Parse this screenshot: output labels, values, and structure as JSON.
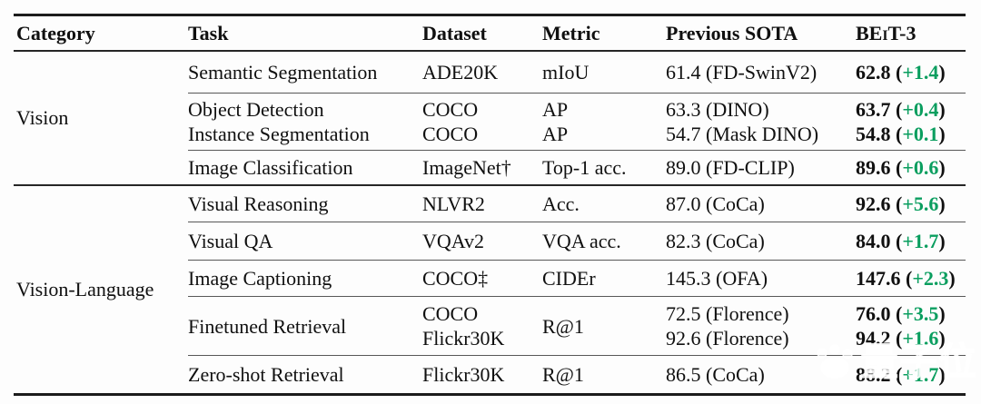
{
  "accent": {
    "green": "#0a9e5f",
    "rule_dark": "#1c1c1c",
    "rule_mid": "#262626",
    "rule_light": "#585858"
  },
  "header": {
    "columns": [
      "Category",
      "Task",
      "Dataset",
      "Metric",
      "Previous SOTA"
    ],
    "beit3": {
      "pre": "BE",
      "small": "I",
      "post": "T-3"
    }
  },
  "table": {
    "sections": [
      {
        "category": "Vision",
        "rows": [
          {
            "task": [
              "Semantic Segmentation"
            ],
            "dataset": [
              "ADE20K"
            ],
            "metric": [
              "mIoU"
            ],
            "previous_sota": [
              "61.4 (FD-SwinV2)"
            ],
            "beit3": [
              {
                "value": "62.8",
                "delta": "+1.4"
              }
            ]
          },
          {
            "task": [
              "Object Detection",
              "Instance Segmentation"
            ],
            "dataset": [
              "COCO",
              "COCO"
            ],
            "metric": [
              "AP",
              "AP"
            ],
            "previous_sota": [
              "63.3 (DINO)",
              "54.7 (Mask DINO)"
            ],
            "beit3": [
              {
                "value": "63.7",
                "delta": "+0.4"
              },
              {
                "value": "54.8",
                "delta": "+0.1"
              }
            ]
          },
          {
            "task": [
              "Image Classification"
            ],
            "dataset": [
              "ImageNet†"
            ],
            "metric": [
              "Top-1 acc."
            ],
            "previous_sota": [
              "89.0 (FD-CLIP)"
            ],
            "beit3": [
              {
                "value": "89.6",
                "delta": "+0.6"
              }
            ]
          }
        ]
      },
      {
        "category": "Vision-Language",
        "rows": [
          {
            "task": [
              "Visual Reasoning"
            ],
            "dataset": [
              "NLVR2"
            ],
            "metric": [
              "Acc."
            ],
            "previous_sota": [
              "87.0 (CoCa)"
            ],
            "beit3": [
              {
                "value": "92.6",
                "delta": "+5.6"
              }
            ]
          },
          {
            "task": [
              "Visual QA"
            ],
            "dataset": [
              "VQAv2"
            ],
            "metric": [
              "VQA acc."
            ],
            "previous_sota": [
              "82.3 (CoCa)"
            ],
            "beit3": [
              {
                "value": "84.0",
                "delta": "+1.7"
              }
            ]
          },
          {
            "task": [
              "Image Captioning"
            ],
            "dataset": [
              "COCO‡"
            ],
            "metric": [
              "CIDEr"
            ],
            "previous_sota": [
              "145.3 (OFA)"
            ],
            "beit3": [
              {
                "value": "147.6",
                "delta": "+2.3"
              }
            ]
          },
          {
            "task": [
              "Finetuned Retrieval"
            ],
            "dataset": [
              "COCO",
              "Flickr30K"
            ],
            "metric": [
              "R@1"
            ],
            "previous_sota": [
              "72.5 (Florence)",
              "92.6 (Florence)"
            ],
            "beit3": [
              {
                "value": "76.0",
                "delta": "+3.5"
              },
              {
                "value": "94.2",
                "delta": "+1.6"
              }
            ]
          },
          {
            "task": [
              "Zero-shot Retrieval"
            ],
            "dataset": [
              "Flickr30K"
            ],
            "metric": [
              "R@1"
            ],
            "previous_sota": [
              "86.5 (CoCa)"
            ],
            "beit3": [
              {
                "value": "88.2",
                "delta": "+1.7"
              }
            ]
          }
        ]
      }
    ]
  },
  "chart_data": {
    "type": "table",
    "columns": [
      "Category",
      "Task",
      "Dataset",
      "Metric",
      "Previous SOTA",
      "BEiT-3"
    ],
    "rows": [
      [
        "Vision",
        "Semantic Segmentation",
        "ADE20K",
        "mIoU",
        "61.4 (FD-SwinV2)",
        "62.8 (+1.4)"
      ],
      [
        "Vision",
        "Object Detection",
        "COCO",
        "AP",
        "63.3 (DINO)",
        "63.7 (+0.4)"
      ],
      [
        "Vision",
        "Instance Segmentation",
        "COCO",
        "AP",
        "54.7 (Mask DINO)",
        "54.8 (+0.1)"
      ],
      [
        "Vision",
        "Image Classification",
        "ImageNet†",
        "Top-1 acc.",
        "89.0 (FD-CLIP)",
        "89.6 (+0.6)"
      ],
      [
        "Vision-Language",
        "Visual Reasoning",
        "NLVR2",
        "Acc.",
        "87.0 (CoCa)",
        "92.6 (+5.6)"
      ],
      [
        "Vision-Language",
        "Visual QA",
        "VQAv2",
        "VQA acc.",
        "82.3 (CoCa)",
        "84.0 (+1.7)"
      ],
      [
        "Vision-Language",
        "Image Captioning",
        "COCO‡",
        "CIDEr",
        "145.3 (OFA)",
        "147.6 (+2.3)"
      ],
      [
        "Vision-Language",
        "Finetuned Retrieval",
        "COCO",
        "R@1",
        "72.5 (Florence)",
        "76.0 (+3.5)"
      ],
      [
        "Vision-Language",
        "Finetuned Retrieval",
        "Flickr30K",
        "R@1",
        "92.6 (Florence)",
        "94.2 (+1.6)"
      ],
      [
        "Vision-Language",
        "Zero-shot Retrieval",
        "Flickr30K",
        "R@1",
        "86.5 (CoCa)",
        "88.2 (+1.7)"
      ]
    ]
  },
  "watermark": {
    "text": "量子位"
  }
}
